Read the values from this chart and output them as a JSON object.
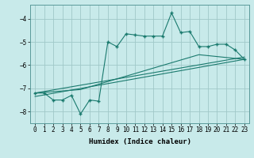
{
  "title": "",
  "xlabel": "Humidex (Indice chaleur)",
  "bg_color": "#c8eaea",
  "grid_color": "#a0c8c8",
  "line_color": "#1a7a6e",
  "xlim": [
    -0.5,
    23.5
  ],
  "ylim": [
    -8.5,
    -3.4
  ],
  "yticks": [
    -8,
    -7,
    -6,
    -5,
    -4
  ],
  "xticks": [
    0,
    1,
    2,
    3,
    4,
    5,
    6,
    7,
    8,
    9,
    10,
    11,
    12,
    13,
    14,
    15,
    16,
    17,
    18,
    19,
    20,
    21,
    22,
    23
  ],
  "line1_x": [
    0,
    1,
    2,
    3,
    4,
    5,
    6,
    7,
    8,
    9,
    10,
    11,
    12,
    13,
    14,
    15,
    16,
    17,
    18,
    19,
    20,
    21,
    22,
    23
  ],
  "line1_y": [
    -7.2,
    -7.2,
    -7.5,
    -7.5,
    -7.3,
    -8.1,
    -7.5,
    -7.55,
    -5.0,
    -5.2,
    -4.65,
    -4.7,
    -4.75,
    -4.75,
    -4.75,
    -3.75,
    -4.6,
    -4.55,
    -5.2,
    -5.2,
    -5.1,
    -5.1,
    -5.35,
    -5.75
  ],
  "line2_x": [
    0,
    23
  ],
  "line2_y": [
    -7.2,
    -5.65
  ],
  "line3_x": [
    0,
    23
  ],
  "line3_y": [
    -7.35,
    -5.75
  ],
  "line4_x": [
    0,
    5,
    18,
    23
  ],
  "line4_y": [
    -7.2,
    -7.05,
    -5.55,
    -5.75
  ]
}
